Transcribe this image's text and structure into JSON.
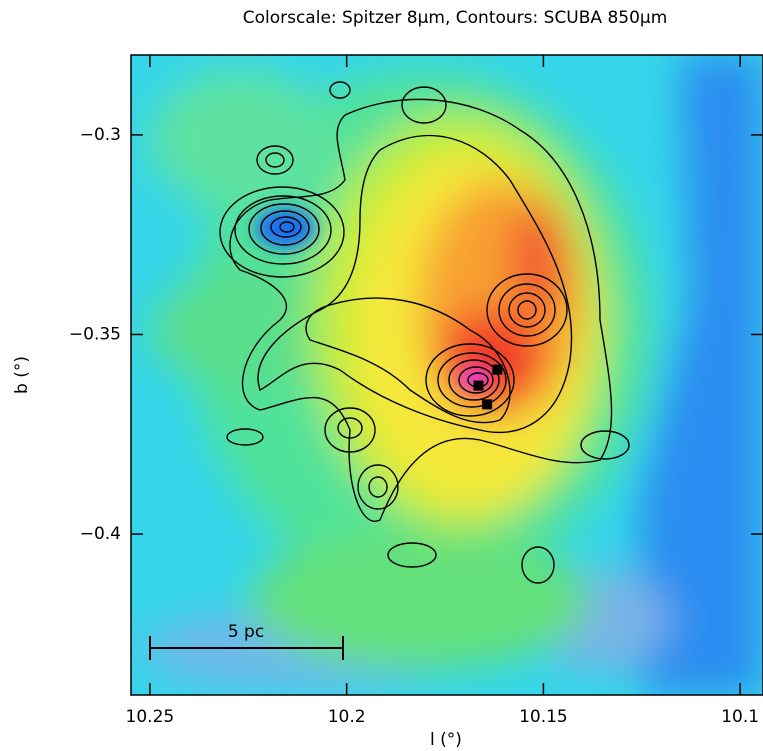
{
  "chart_data": {
    "type": "image",
    "title": "Colorscale: Spitzer 8μm, Contours: SCUBA 850μm",
    "x_label": "l (°)",
    "y_label": "b (°)",
    "xlim": [
      10.2548,
      10.0942
    ],
    "ylim": [
      -0.4403,
      -0.28
    ],
    "xticks": [
      10.25,
      10.2,
      10.15,
      10.1
    ],
    "yticks": [
      {
        "value": -0.3,
        "label": "−0.3"
      },
      {
        "value": -0.35,
        "label": "−0.35"
      },
      {
        "value": -0.4,
        "label": "−0.4"
      }
    ],
    "annotation": "5 pc",
    "markers": {
      "x": [
        10.1617,
        10.1665,
        10.1643
      ],
      "y": [
        -0.3588,
        -0.3628,
        -0.3675
      ],
      "color": "#000000"
    }
  }
}
